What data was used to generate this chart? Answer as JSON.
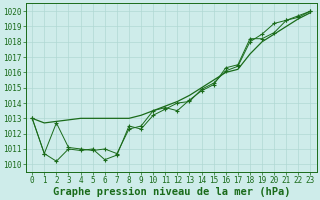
{
  "title": "Graphe pression niveau de la mer (hPa)",
  "hours": [
    0,
    1,
    2,
    3,
    4,
    5,
    6,
    7,
    8,
    9,
    10,
    11,
    12,
    13,
    14,
    15,
    16,
    17,
    18,
    19,
    20,
    21,
    22,
    23
  ],
  "line1": [
    1013.0,
    1012.7,
    1012.8,
    1012.9,
    1013.0,
    1013.0,
    1013.0,
    1013.0,
    1013.0,
    1013.2,
    1013.5,
    1013.8,
    1014.1,
    1014.5,
    1015.0,
    1015.5,
    1016.0,
    1016.2,
    1017.2,
    1018.0,
    1018.5,
    1019.0,
    1019.5,
    1019.9
  ],
  "line2": [
    1013.0,
    1010.7,
    1010.2,
    1011.0,
    1010.9,
    1011.0,
    1010.3,
    1010.6,
    1012.5,
    1012.3,
    1013.2,
    1013.6,
    1014.0,
    1014.1,
    1014.9,
    1015.3,
    1016.1,
    1016.4,
    1018.0,
    1018.5,
    1019.2,
    1019.4,
    1019.7,
    1020.0
  ],
  "line3": [
    1013.0,
    1010.7,
    1012.7,
    1011.1,
    1011.0,
    1010.9,
    1011.0,
    1010.7,
    1012.3,
    1012.5,
    1013.5,
    1013.7,
    1013.5,
    1014.2,
    1014.8,
    1015.2,
    1016.3,
    1016.5,
    1018.2,
    1018.2,
    1018.6,
    1019.4,
    1019.6,
    1020.0
  ],
  "line_color": "#1a6b1a",
  "bg_color": "#ceecea",
  "grid_color": "#b0d8d4",
  "ylim": [
    1009.5,
    1020.5
  ],
  "yticks": [
    1010,
    1011,
    1012,
    1013,
    1014,
    1015,
    1016,
    1017,
    1018,
    1019,
    1020
  ],
  "title_fontsize": 7.5,
  "tick_fontsize": 5.5
}
